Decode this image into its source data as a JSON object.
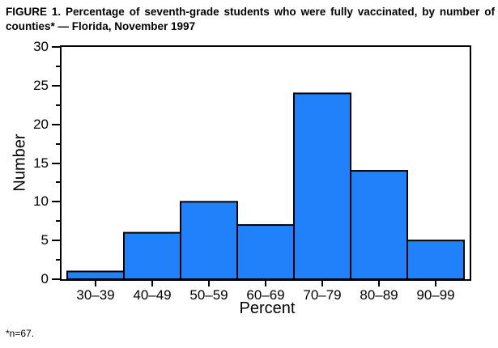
{
  "figure": {
    "title": "FIGURE 1. Percentage of seventh-grade students who were fully vaccinated, by number of counties* — Florida, November 1997",
    "footnote": "*n=67."
  },
  "chart_data": {
    "type": "bar",
    "title": "FIGURE 1. Percentage of seventh-grade students who were fully vaccinated, by number of counties* — Florida, November 1997",
    "categories": [
      "30–39",
      "40–49",
      "50–59",
      "60–69",
      "70–79",
      "80–89",
      "90–99"
    ],
    "values": [
      1,
      6,
      10,
      7,
      24,
      14,
      5
    ],
    "xlabel": "Percent",
    "ylabel": "Number",
    "ylim": [
      0,
      30
    ],
    "yticks": [
      0,
      5,
      10,
      15,
      20,
      25,
      30
    ],
    "y_minor_step": 2.5,
    "grid": false,
    "legend": "none",
    "n_total": "n=67",
    "bar_color": "#2181FB",
    "bar_outline": "#000000",
    "axis_color": "#000000"
  }
}
